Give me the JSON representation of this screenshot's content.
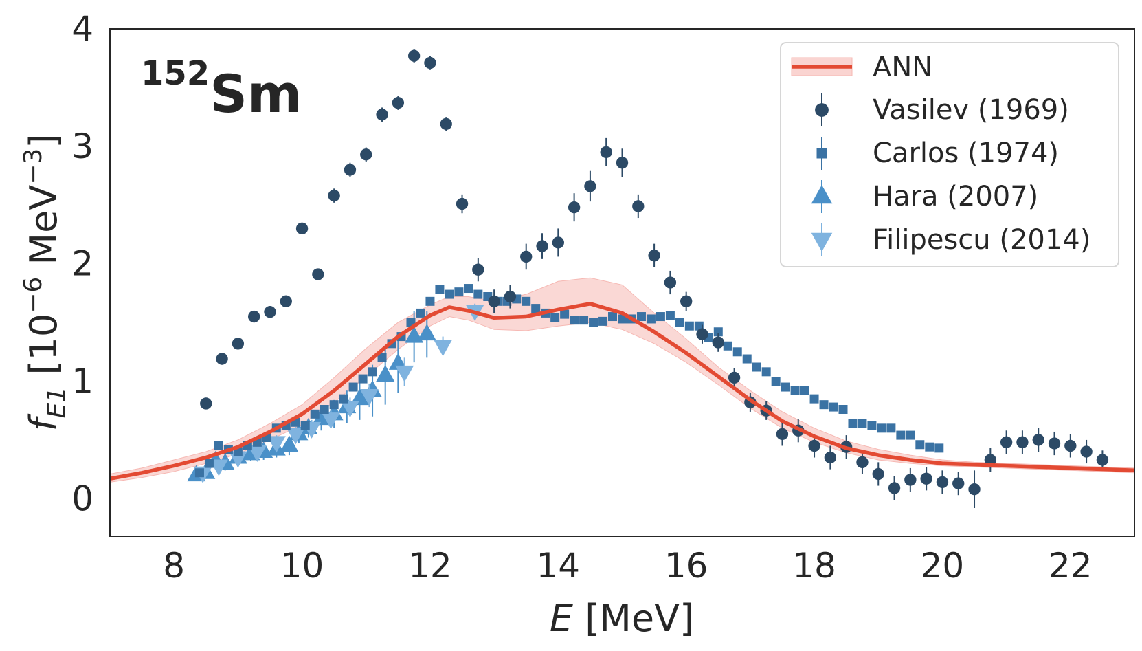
{
  "chart_data": {
    "type": "scatter",
    "title": "",
    "isotope": {
      "mass": "152",
      "element": "Sm"
    },
    "xlabel": {
      "italic": "E",
      "rest": " [MeV]"
    },
    "ylabel": {
      "f": "f",
      "sub": "E1",
      "open": " [10",
      "exp": "−6",
      "mid": " MeV",
      "exp2": "−3",
      "close": "]"
    },
    "xlim": [
      7,
      23
    ],
    "ylim": [
      -0.32,
      4.0
    ],
    "xticks": [
      "8",
      "10",
      "12",
      "14",
      "16",
      "18",
      "20",
      "22"
    ],
    "yticks": [
      "0",
      "1",
      "2",
      "3",
      "4"
    ],
    "grid": false,
    "legend_position": "top-right",
    "legend": [
      "ANN",
      "Vasilev (1969)",
      "Carlos (1974)",
      "Hara (2007)",
      "Filipescu (2014)"
    ],
    "colors": {
      "ann": "#e34a33",
      "band": "#f6b8b3",
      "vasilev": "#2c4a66",
      "carlos": "#3a72a3",
      "hara": "#4a90c8",
      "filipescu": "#7fb3df"
    },
    "ann": {
      "name": "ANN",
      "x": [
        7.0,
        7.5,
        8.0,
        8.5,
        9.0,
        9.5,
        10.0,
        10.5,
        11.0,
        11.5,
        12.0,
        12.3,
        12.6,
        13.0,
        13.5,
        14.0,
        14.5,
        15.0,
        15.5,
        16.0,
        16.5,
        17.0,
        17.5,
        18.0,
        18.5,
        19.0,
        19.5,
        20.0,
        20.5,
        21.0,
        22.0,
        23.0
      ],
      "y": [
        0.17,
        0.22,
        0.28,
        0.35,
        0.44,
        0.57,
        0.72,
        0.92,
        1.15,
        1.38,
        1.56,
        1.63,
        1.6,
        1.54,
        1.55,
        1.61,
        1.66,
        1.58,
        1.42,
        1.24,
        1.04,
        0.84,
        0.66,
        0.53,
        0.43,
        0.37,
        0.33,
        0.3,
        0.29,
        0.28,
        0.26,
        0.24
      ],
      "lower": [
        0.14,
        0.18,
        0.23,
        0.3,
        0.38,
        0.5,
        0.63,
        0.82,
        1.04,
        1.27,
        1.47,
        1.55,
        1.52,
        1.44,
        1.43,
        1.47,
        1.5,
        1.44,
        1.32,
        1.16,
        0.97,
        0.77,
        0.6,
        0.48,
        0.39,
        0.33,
        0.3,
        0.28,
        0.27,
        0.26,
        0.24,
        0.22
      ],
      "upper": [
        0.21,
        0.26,
        0.33,
        0.4,
        0.5,
        0.64,
        0.8,
        1.03,
        1.28,
        1.5,
        1.65,
        1.72,
        1.72,
        1.68,
        1.74,
        1.85,
        1.88,
        1.82,
        1.58,
        1.36,
        1.12,
        0.92,
        0.74,
        0.6,
        0.49,
        0.42,
        0.37,
        0.33,
        0.31,
        0.3,
        0.28,
        0.26
      ]
    },
    "series": [
      {
        "name": "Vasilev (1969)",
        "marker": "circle",
        "x": [
          8.5,
          8.75,
          9.0,
          9.25,
          9.5,
          9.75,
          10.0,
          10.25,
          10.5,
          10.75,
          11.0,
          11.25,
          11.5,
          11.75,
          12.0,
          12.25,
          12.5,
          12.75,
          13.0,
          13.25,
          13.5,
          13.75,
          14.0,
          14.25,
          14.5,
          14.75,
          15.0,
          15.25,
          15.5,
          15.75,
          16.0,
          16.25,
          16.5,
          16.75,
          17.0,
          17.25,
          17.5,
          17.75,
          18.0,
          18.25,
          18.5,
          18.75,
          19.0,
          19.25,
          19.5,
          19.75,
          20.0,
          20.25,
          20.5,
          20.75,
          21.0,
          21.25,
          21.5,
          21.75,
          22.0,
          22.25,
          22.5
        ],
        "y": [
          0.81,
          1.19,
          1.32,
          1.55,
          1.59,
          1.68,
          2.3,
          1.91,
          2.58,
          2.8,
          2.93,
          3.27,
          3.37,
          3.77,
          3.71,
          3.19,
          2.51,
          1.95,
          1.68,
          1.72,
          2.06,
          2.15,
          2.18,
          2.48,
          2.66,
          2.95,
          2.86,
          2.49,
          2.07,
          1.84,
          1.68,
          1.4,
          1.33,
          1.03,
          0.82,
          0.75,
          0.55,
          0.58,
          0.45,
          0.35,
          0.44,
          0.31,
          0.21,
          0.09,
          0.16,
          0.17,
          0.14,
          0.13,
          0.08,
          0.33,
          0.48,
          0.48,
          0.5,
          0.47,
          0.45,
          0.4,
          0.33
        ],
        "err": [
          0.05,
          0.05,
          0.05,
          0.05,
          0.05,
          0.05,
          0.05,
          0.05,
          0.06,
          0.06,
          0.06,
          0.06,
          0.06,
          0.06,
          0.06,
          0.06,
          0.08,
          0.1,
          0.1,
          0.1,
          0.11,
          0.11,
          0.12,
          0.12,
          0.13,
          0.12,
          0.12,
          0.1,
          0.1,
          0.1,
          0.08,
          0.08,
          0.08,
          0.08,
          0.08,
          0.08,
          0.1,
          0.1,
          0.1,
          0.1,
          0.1,
          0.1,
          0.1,
          0.1,
          0.1,
          0.1,
          0.1,
          0.1,
          0.16,
          0.1,
          0.1,
          0.1,
          0.1,
          0.1,
          0.1,
          0.1,
          0.08
        ]
      },
      {
        "name": "Carlos (1974)",
        "marker": "square",
        "x": [
          8.4,
          8.55,
          8.7,
          8.85,
          9.0,
          9.15,
          9.3,
          9.45,
          9.6,
          9.75,
          9.9,
          10.05,
          10.2,
          10.35,
          10.5,
          10.65,
          10.8,
          10.95,
          11.1,
          11.25,
          11.4,
          11.55,
          11.7,
          11.85,
          12.0,
          12.15,
          12.3,
          12.45,
          12.6,
          12.75,
          12.9,
          13.05,
          13.2,
          13.35,
          13.5,
          13.65,
          13.8,
          13.95,
          14.1,
          14.25,
          14.4,
          14.55,
          14.7,
          14.85,
          15.0,
          15.15,
          15.3,
          15.45,
          15.6,
          15.75,
          15.9,
          16.05,
          16.2,
          16.35,
          16.5,
          16.65,
          16.8,
          16.95,
          17.1,
          17.25,
          17.4,
          17.55,
          17.7,
          17.85,
          18.0,
          18.15,
          18.3,
          18.45,
          18.6,
          18.75,
          18.9,
          19.05,
          19.2,
          19.35,
          19.5,
          19.65,
          19.8,
          19.95
        ],
        "y": [
          0.22,
          0.3,
          0.45,
          0.42,
          0.4,
          0.45,
          0.48,
          0.52,
          0.6,
          0.62,
          0.65,
          0.62,
          0.72,
          0.76,
          0.8,
          0.85,
          0.95,
          1.02,
          1.08,
          1.2,
          1.32,
          1.38,
          1.5,
          1.58,
          1.68,
          1.78,
          1.74,
          1.76,
          1.79,
          1.74,
          1.72,
          1.68,
          1.68,
          1.7,
          1.68,
          1.62,
          1.58,
          1.54,
          1.57,
          1.52,
          1.52,
          1.5,
          1.51,
          1.55,
          1.53,
          1.53,
          1.55,
          1.53,
          1.55,
          1.56,
          1.5,
          1.47,
          1.47,
          1.37,
          1.42,
          1.3,
          1.25,
          1.19,
          1.12,
          1.08,
          1.0,
          0.95,
          0.92,
          0.92,
          0.85,
          0.8,
          0.78,
          0.76,
          0.64,
          0.64,
          0.62,
          0.6,
          0.6,
          0.54,
          0.54,
          0.46,
          0.44,
          0.43
        ],
        "err": [
          0.03,
          0.03,
          0.03,
          0.03,
          0.03,
          0.03,
          0.03,
          0.03,
          0.03,
          0.03,
          0.03,
          0.03,
          0.03,
          0.03,
          0.03,
          0.03,
          0.03,
          0.03,
          0.03,
          0.03,
          0.03,
          0.03,
          0.03,
          0.03,
          0.03,
          0.03,
          0.03,
          0.03,
          0.03,
          0.03,
          0.03,
          0.03,
          0.03,
          0.03,
          0.03,
          0.03,
          0.03,
          0.03,
          0.03,
          0.03,
          0.03,
          0.03,
          0.03,
          0.03,
          0.03,
          0.03,
          0.03,
          0.03,
          0.03,
          0.03,
          0.03,
          0.03,
          0.03,
          0.03,
          0.03,
          0.03,
          0.03,
          0.03,
          0.03,
          0.03,
          0.03,
          0.03,
          0.03,
          0.03,
          0.03,
          0.03,
          0.03,
          0.03,
          0.03,
          0.03,
          0.03,
          0.03,
          0.03,
          0.03,
          0.03,
          0.03,
          0.03,
          0.03
        ]
      },
      {
        "name": "Hara (2007)",
        "marker": "triangle-up",
        "x": [
          8.35,
          8.5,
          8.65,
          8.8,
          9.0,
          9.2,
          9.4,
          9.6,
          9.8,
          9.95,
          10.1,
          10.3,
          10.5,
          10.7,
          10.9,
          11.1,
          11.3,
          11.5,
          11.75,
          11.95
        ],
        "y": [
          0.2,
          0.22,
          0.32,
          0.3,
          0.35,
          0.38,
          0.4,
          0.42,
          0.45,
          0.55,
          0.6,
          0.68,
          0.72,
          0.78,
          0.85,
          0.92,
          1.05,
          1.15,
          1.38,
          1.4
        ],
        "err": [
          0.05,
          0.05,
          0.05,
          0.06,
          0.06,
          0.06,
          0.07,
          0.07,
          0.08,
          0.08,
          0.08,
          0.1,
          0.12,
          0.14,
          0.18,
          0.22,
          0.25,
          0.25,
          0.22,
          0.2
        ]
      },
      {
        "name": "Filipescu (2014)",
        "marker": "triangle-down",
        "x": [
          8.45,
          8.7,
          9.0,
          9.3,
          9.6,
          9.9,
          10.15,
          10.45,
          10.75,
          11.05,
          11.6,
          12.2,
          12.7
        ],
        "y": [
          0.22,
          0.28,
          0.35,
          0.4,
          0.48,
          0.55,
          0.6,
          0.68,
          0.78,
          0.88,
          1.08,
          1.3,
          1.6
        ],
        "err": [
          0.05,
          0.05,
          0.05,
          0.06,
          0.06,
          0.06,
          0.07,
          0.07,
          0.08,
          0.1,
          0.12,
          0.08,
          0.06
        ]
      }
    ]
  }
}
